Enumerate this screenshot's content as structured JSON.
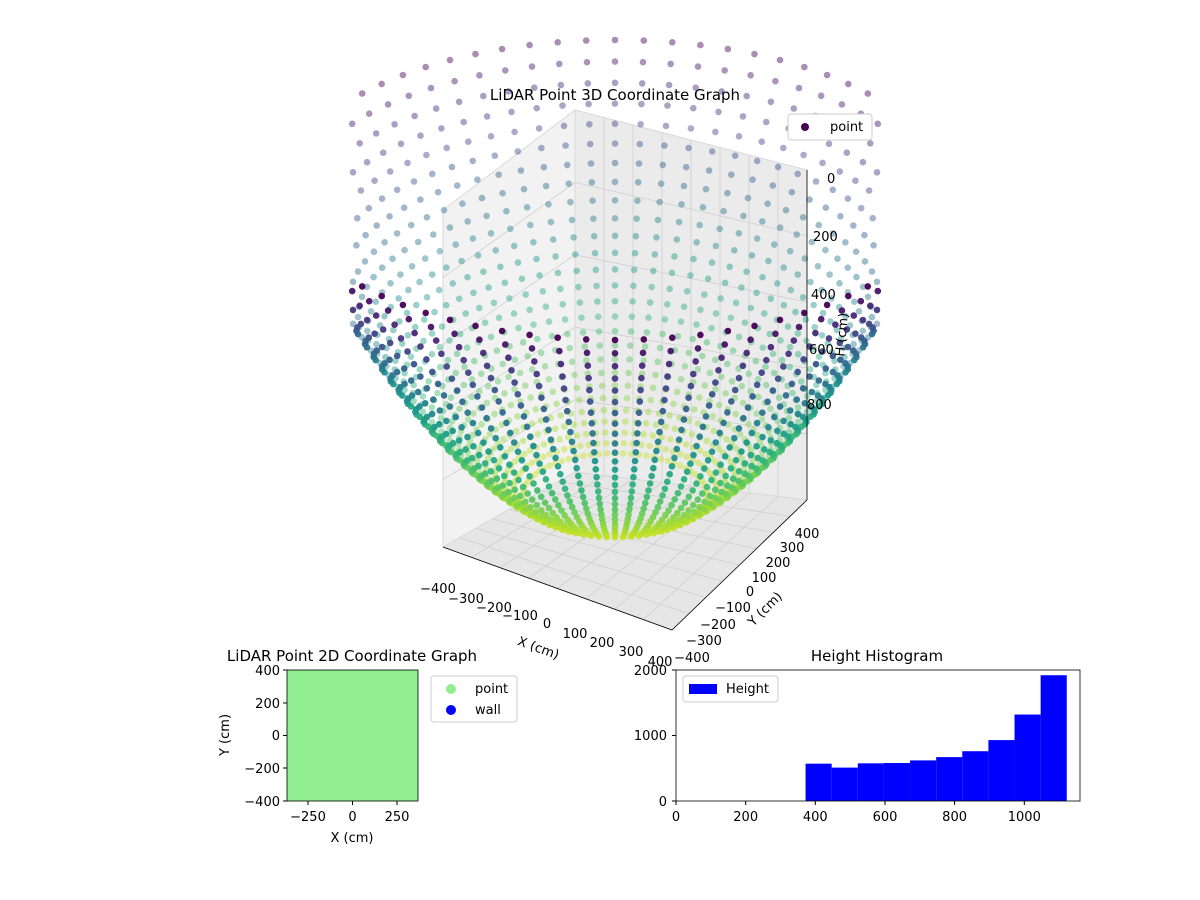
{
  "chart_data": [
    {
      "type": "scatter",
      "title": "LiDAR Point 3D Coordinate Graph",
      "xlabel": "X (cm)",
      "ylabel": "Y (cm)",
      "zlabel": "H (cm)",
      "xlim": [
        -400,
        400
      ],
      "ylim": [
        -400,
        400
      ],
      "zlim": [
        1000,
        0
      ],
      "x_ticks": [
        "−400",
        "−300",
        "−200",
        "−100",
        "0",
        "100",
        "200",
        "300",
        "400"
      ],
      "y_ticks": [
        "−400",
        "−300",
        "−200",
        "−100",
        "0",
        "100",
        "200",
        "300",
        "400"
      ],
      "z_ticks": [
        "0",
        "200",
        "400",
        "600",
        "800"
      ],
      "legend": [
        "point"
      ],
      "legend_position": "top-right",
      "colormap": "viridis",
      "grid": true,
      "description_shape": "bowl-shaped point cloud, height increasing toward the center"
    },
    {
      "type": "scatter",
      "title": "LiDAR Point 2D Coordinate Graph",
      "xlabel": "X (cm)",
      "ylabel": "Y (cm)",
      "xlim": [
        -400,
        400
      ],
      "ylim": [
        -400,
        400
      ],
      "x_ticks": [
        "−250",
        "0",
        "250"
      ],
      "y_ticks": [
        "400",
        "200",
        "0",
        "−200",
        "−400"
      ],
      "series": [
        {
          "name": "point",
          "color": "#90ee90"
        },
        {
          "name": "wall",
          "color": "#0000ff"
        }
      ],
      "legend_position": "outside-right"
    },
    {
      "type": "bar",
      "title": "Height Histogram",
      "xlabel": "",
      "ylabel": "",
      "xlim": [
        0,
        1160
      ],
      "ylim": [
        0,
        2000
      ],
      "x_ticks": [
        "0",
        "200",
        "400",
        "600",
        "800",
        "1000"
      ],
      "y_ticks": [
        "0",
        "1000",
        "2000"
      ],
      "bin_edges": [
        372,
        447,
        522,
        597,
        672,
        747,
        822,
        897,
        972,
        1047,
        1122
      ],
      "values": [
        570,
        510,
        575,
        580,
        620,
        670,
        760,
        930,
        1320,
        1920
      ],
      "series": [
        {
          "name": "Height",
          "color": "#0000ff"
        }
      ],
      "legend_position": "top-left"
    }
  ]
}
